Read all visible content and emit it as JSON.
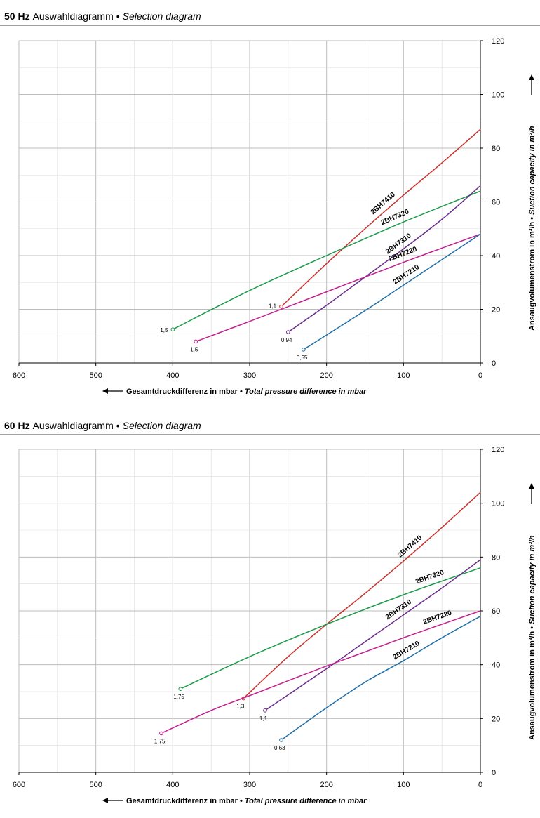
{
  "chart_data": [
    {
      "type": "line",
      "title_prefix": "50 Hz",
      "title": "Auswahldiagramm",
      "title_separator": "•",
      "title_en": "Selection diagram",
      "xlabel": "Gesamtdruckdifferenz in mbar",
      "xlabel_separator": "•",
      "xlabel_en": "Total pressure difference in mbar",
      "ylabel": "Ansaugvolumenstrom in m³/h",
      "ylabel_separator": "•",
      "ylabel_en": "Suction capacity in m³/h",
      "xlim": [
        600,
        0
      ],
      "ylim": [
        0,
        120
      ],
      "x_ticks": [
        "600",
        "500",
        "400",
        "300",
        "200",
        "100",
        "0"
      ],
      "y_ticks": [
        "0",
        "20",
        "40",
        "60",
        "80",
        "100",
        "120"
      ],
      "grid": true,
      "series": [
        {
          "name": "2BH7410",
          "color": "#c8312c",
          "points": [
            [
              259,
              21
            ],
            [
              200,
              37
            ],
            [
              150,
              50
            ],
            [
              100,
              62.5
            ],
            [
              50,
              74.5
            ],
            [
              0,
              87
            ]
          ],
          "end_label": "1,1"
        },
        {
          "name": "2BH7320",
          "color": "#1a9a48",
          "points": [
            [
              400,
              12.5
            ],
            [
              300,
              27
            ],
            [
              200,
              40
            ],
            [
              100,
              52.5
            ],
            [
              0,
              64
            ]
          ],
          "end_label": "1,5"
        },
        {
          "name": "2BH7310",
          "color": "#6a2c8c",
          "points": [
            [
              250,
              11.5
            ],
            [
              200,
              21.5
            ],
            [
              150,
              32
            ],
            [
              100,
              42.5
            ],
            [
              50,
              53.5
            ],
            [
              0,
              66
            ]
          ],
          "end_label": "0,94"
        },
        {
          "name": "2BH7220",
          "color": "#c41e8f",
          "points": [
            [
              370,
              8
            ],
            [
              300,
              15.5
            ],
            [
              200,
              26.5
            ],
            [
              100,
              37.5
            ],
            [
              0,
              48
            ]
          ],
          "end_label": "1,5"
        },
        {
          "name": "2BH7210",
          "color": "#1f6ea8",
          "points": [
            [
              230,
              5
            ],
            [
              150,
              19.5
            ],
            [
              100,
              29
            ],
            [
              50,
              38.5
            ],
            [
              0,
              48
            ]
          ],
          "end_label": "0,55"
        }
      ]
    },
    {
      "type": "line",
      "title_prefix": "60 Hz",
      "title": "Auswahldiagramm",
      "title_separator": "•",
      "title_en": "Selection diagram",
      "xlabel": "Gesamtdruckdifferenz in mbar",
      "xlabel_separator": "•",
      "xlabel_en": "Total pressure difference in mbar",
      "ylabel": "Ansaugvolumenstrom in m³/h",
      "ylabel_separator": "•",
      "ylabel_en": "Suction capacity in m³/h",
      "xlim": [
        600,
        0
      ],
      "ylim": [
        0,
        120
      ],
      "x_ticks": [
        "600",
        "500",
        "400",
        "300",
        "200",
        "100",
        "0"
      ],
      "y_ticks": [
        "0",
        "20",
        "40",
        "60",
        "80",
        "100",
        "120"
      ],
      "grid": true,
      "series": [
        {
          "name": "2BH7410",
          "color": "#c8312c",
          "points": [
            [
              308,
              27.5
            ],
            [
              250,
              43
            ],
            [
              200,
              55
            ],
            [
              150,
              66.5
            ],
            [
              100,
              78.5
            ],
            [
              50,
              91
            ],
            [
              0,
              104
            ]
          ],
          "end_label": "1,3"
        },
        {
          "name": "2BH7320",
          "color": "#1a9a48",
          "points": [
            [
              390,
              31
            ],
            [
              300,
              43
            ],
            [
              200,
              55
            ],
            [
              100,
              66
            ],
            [
              0,
              76
            ]
          ],
          "end_label": "1,75"
        },
        {
          "name": "2BH7310",
          "color": "#6a2c8c",
          "points": [
            [
              280,
              23
            ],
            [
              200,
              38.5
            ],
            [
              150,
              48.5
            ],
            [
              100,
              58.5
            ],
            [
              50,
              68.5
            ],
            [
              0,
              79
            ]
          ],
          "end_label": "1,1"
        },
        {
          "name": "2BH7220",
          "color": "#c41e8f",
          "points": [
            [
              415,
              14.5
            ],
            [
              350,
              23
            ],
            [
              300,
              28.5
            ],
            [
              200,
              39.5
            ],
            [
              100,
              50
            ],
            [
              0,
              60
            ]
          ],
          "end_label": "1,75"
        },
        {
          "name": "2BH7210",
          "color": "#1f6ea8",
          "points": [
            [
              259,
              12
            ],
            [
              200,
              24
            ],
            [
              150,
              33.5
            ],
            [
              100,
              41.5
            ],
            [
              50,
              50
            ],
            [
              0,
              58
            ]
          ],
          "end_label": "0,63"
        }
      ]
    }
  ]
}
